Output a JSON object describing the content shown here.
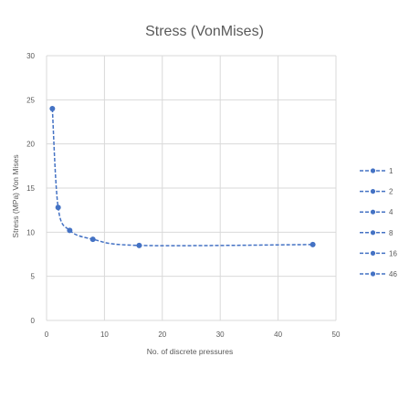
{
  "chart_data": {
    "type": "scatter",
    "title": "Stress (VonMises)",
    "xlabel": "No. of discrete pressures",
    "ylabel": "Stress (MPa) Von Mises",
    "xlim": [
      0,
      50
    ],
    "ylim": [
      0,
      30
    ],
    "x_ticks": [
      0,
      10,
      20,
      30,
      40,
      50
    ],
    "y_ticks": [
      0,
      5,
      10,
      15,
      20,
      25,
      30
    ],
    "grid": true,
    "legend_position": "right",
    "line_style": "dashed",
    "series_color": "#4472c4",
    "points": [
      {
        "x": 1,
        "y": 24.0
      },
      {
        "x": 2,
        "y": 12.8
      },
      {
        "x": 4,
        "y": 10.2
      },
      {
        "x": 8,
        "y": 9.2
      },
      {
        "x": 16,
        "y": 8.5
      },
      {
        "x": 46,
        "y": 8.6
      }
    ],
    "legend": [
      "1",
      "2",
      "4",
      "8",
      "16",
      "46"
    ]
  }
}
